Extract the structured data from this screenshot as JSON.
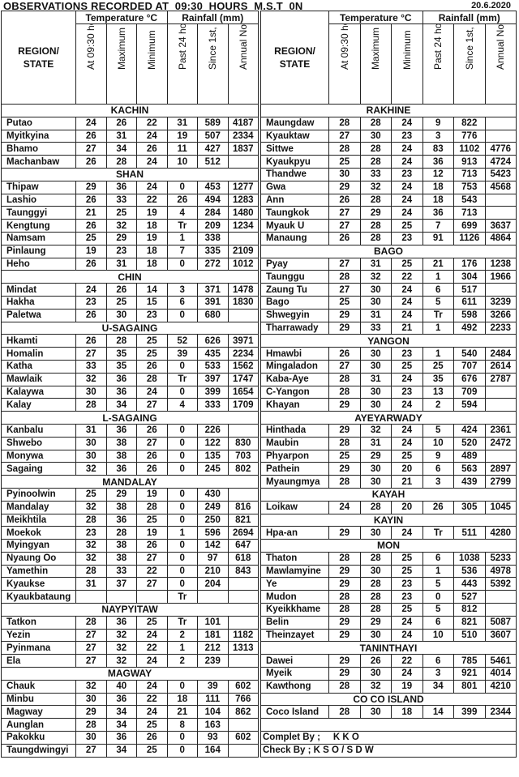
{
  "title": "OBSERVATIONS RECORDED AT  09:30  HOURS  M.S.T  0N",
  "date": "20.6.2020",
  "headers": {
    "region": "REGION/\nSTATE",
    "temperature": "Temperature  °C",
    "rainfall": "Rainfall (mm)",
    "columns": [
      "At 09:30 hours",
      "Maximum",
      "Minimum",
      "Past 24 hours",
      "Since 1st, Jan",
      "Annual Normal"
    ]
  },
  "left": [
    {
      "name": "KACHIN",
      "rows": [
        [
          "Putao",
          "24",
          "26",
          "22",
          "31",
          "589",
          "4187"
        ],
        [
          "Myitkyina",
          "26",
          "31",
          "24",
          "19",
          "507",
          "2334"
        ],
        [
          "Bhamo",
          "27",
          "34",
          "26",
          "11",
          "427",
          "1837"
        ],
        [
          "Machanbaw",
          "26",
          "28",
          "24",
          "10",
          "512",
          ""
        ]
      ]
    },
    {
      "name": "SHAN",
      "rows": [
        [
          "Thipaw",
          "29",
          "36",
          "24",
          "0",
          "453",
          "1277"
        ],
        [
          "Lashio",
          "26",
          "33",
          "22",
          "26",
          "494",
          "1283"
        ],
        [
          "Taunggyi",
          "21",
          "25",
          "19",
          "4",
          "284",
          "1480"
        ],
        [
          "Kengtung",
          "26",
          "32",
          "18",
          "Tr",
          "209",
          "1234"
        ],
        [
          "Namsam",
          "25",
          "29",
          "19",
          "1",
          "338",
          ""
        ],
        [
          "Pinlaung",
          "19",
          "23",
          "18",
          "7",
          "335",
          "2109"
        ],
        [
          "Heho",
          "26",
          "31",
          "18",
          "0",
          "272",
          "1012"
        ]
      ]
    },
    {
      "name": "CHIN",
      "rows": [
        [
          "Mindat",
          "24",
          "26",
          "14",
          "3",
          "371",
          "1478"
        ],
        [
          "Hakha",
          "23",
          "25",
          "15",
          "6",
          "391",
          "1830"
        ],
        [
          "Paletwa",
          "26",
          "30",
          "23",
          "0",
          "680",
          ""
        ]
      ]
    },
    {
      "name": "U-SAGAING",
      "rows": [
        [
          "Hkamti",
          "26",
          "28",
          "25",
          "52",
          "626",
          "3971"
        ],
        [
          "Homalin",
          "27",
          "35",
          "25",
          "39",
          "435",
          "2234"
        ],
        [
          "Katha",
          "33",
          "35",
          "26",
          "0",
          "533",
          "1562"
        ],
        [
          "Mawlaik",
          "32",
          "36",
          "28",
          "Tr",
          "397",
          "1747"
        ],
        [
          "Kalaywa",
          "30",
          "36",
          "24",
          "0",
          "399",
          "1654"
        ],
        [
          "Kalay",
          "28",
          "34",
          "27",
          "4",
          "333",
          "1709"
        ]
      ]
    },
    {
      "name": "L-SAGAING",
      "rows": [
        [
          "Kanbalu",
          "31",
          "36",
          "26",
          "0",
          "226",
          ""
        ],
        [
          "Shwebo",
          "30",
          "38",
          "27",
          "0",
          "122",
          "830"
        ],
        [
          "Monywa",
          "30",
          "38",
          "26",
          "0",
          "135",
          "703"
        ],
        [
          "Sagaing",
          "32",
          "36",
          "26",
          "0",
          "245",
          "802"
        ]
      ]
    },
    {
      "name": "MANDALAY",
      "rows": [
        [
          "Pyinoolwin",
          "25",
          "29",
          "19",
          "0",
          "430",
          ""
        ],
        [
          "Mandalay",
          "32",
          "38",
          "28",
          "0",
          "249",
          "816"
        ],
        [
          "Meikhtila",
          "28",
          "36",
          "25",
          "0",
          "250",
          "821"
        ],
        [
          "Moekok",
          "23",
          "28",
          "19",
          "1",
          "596",
          "2694"
        ],
        [
          "Myingyan",
          "32",
          "38",
          "26",
          "0",
          "142",
          "647"
        ],
        [
          "Nyaung Oo",
          "32",
          "38",
          "27",
          "0",
          "97",
          "618"
        ],
        [
          "Yamethin",
          "28",
          "33",
          "22",
          "0",
          "210",
          "843"
        ],
        [
          "Kyaukse",
          "31",
          "37",
          "27",
          "0",
          "204",
          ""
        ],
        [
          "Kyaukbataung",
          "",
          "",
          "",
          "Tr",
          "",
          ""
        ]
      ]
    },
    {
      "name": "NAYPYITAW",
      "rows": [
        [
          "Tatkon",
          "28",
          "36",
          "25",
          "Tr",
          "101",
          ""
        ],
        [
          "Yezin",
          "27",
          "32",
          "24",
          "2",
          "181",
          "1182"
        ],
        [
          "Pyinmana",
          "27",
          "32",
          "22",
          "1",
          "212",
          "1313"
        ],
        [
          "Ela",
          "27",
          "32",
          "24",
          "2",
          "239",
          ""
        ]
      ]
    },
    {
      "name": "MAGWAY",
      "rows": [
        [
          "Chauk",
          "32",
          "40",
          "24",
          "0",
          "39",
          "602"
        ],
        [
          "Minbu",
          "30",
          "36",
          "22",
          "18",
          "111",
          "766"
        ],
        [
          "Magway",
          "29",
          "34",
          "24",
          "21",
          "104",
          "862"
        ],
        [
          "Aunglan",
          "28",
          "34",
          "25",
          "8",
          "163",
          ""
        ],
        [
          "Pakokku",
          "30",
          "36",
          "26",
          "0",
          "93",
          "602"
        ],
        [
          "Taungdwingyi",
          "27",
          "34",
          "25",
          "0",
          "164",
          ""
        ]
      ]
    }
  ],
  "right": [
    {
      "name": "RAKHINE",
      "rows": [
        [
          "Maungdaw",
          "28",
          "28",
          "24",
          "9",
          "822",
          ""
        ],
        [
          "Kyauktaw",
          "27",
          "30",
          "23",
          "3",
          "776",
          ""
        ],
        [
          "Sittwe",
          "28",
          "28",
          "24",
          "83",
          "1102",
          "4776"
        ],
        [
          "Kyaukpyu",
          "25",
          "28",
          "24",
          "36",
          "913",
          "4724"
        ],
        [
          "Thandwe",
          "30",
          "33",
          "23",
          "12",
          "713",
          "5423"
        ],
        [
          "Gwa",
          "29",
          "32",
          "24",
          "18",
          "753",
          "4568"
        ],
        [
          "Ann",
          "26",
          "28",
          "24",
          "18",
          "543",
          ""
        ],
        [
          "Taungkok",
          "27",
          "29",
          "24",
          "36",
          "713",
          ""
        ],
        [
          "Myauk U",
          "27",
          "28",
          "25",
          "7",
          "699",
          "3637"
        ],
        [
          "Manaung",
          "26",
          "28",
          "23",
          "91",
          "1126",
          "4864"
        ]
      ]
    },
    {
      "name": "BAGO",
      "rows": [
        [
          "Pyay",
          "27",
          "31",
          "25",
          "21",
          "176",
          "1238"
        ],
        [
          "Taunggu",
          "28",
          "32",
          "22",
          "1",
          "304",
          "1966"
        ],
        [
          "Zaung Tu",
          "27",
          "30",
          "24",
          "6",
          "517",
          ""
        ],
        [
          "Bago",
          "25",
          "30",
          "24",
          "5",
          "611",
          "3239"
        ],
        [
          "Shwegyin",
          "29",
          "31",
          "24",
          "Tr",
          "598",
          "3266"
        ],
        [
          "Tharrawady",
          "29",
          "33",
          "21",
          "1",
          "492",
          "2233"
        ]
      ]
    },
    {
      "name": "YANGON",
      "rows": [
        [
          "Hmawbi",
          "26",
          "30",
          "23",
          "1",
          "540",
          "2484"
        ],
        [
          "Mingaladon",
          "27",
          "30",
          "25",
          "25",
          "707",
          "2614"
        ],
        [
          "Kaba-Aye",
          "28",
          "31",
          "24",
          "35",
          "676",
          "2787"
        ],
        [
          "C-Yangon",
          "28",
          "30",
          "23",
          "13",
          "709",
          ""
        ],
        [
          "Khayan",
          "29",
          "30",
          "24",
          "2",
          "594",
          ""
        ]
      ]
    },
    {
      "name": "AYEYARWADY",
      "rows": [
        [
          "Hinthada",
          "29",
          "32",
          "24",
          "5",
          "424",
          "2361"
        ],
        [
          "Maubin",
          "28",
          "31",
          "24",
          "10",
          "520",
          "2472"
        ],
        [
          "Phyarpon",
          "25",
          "29",
          "25",
          "9",
          "489",
          ""
        ],
        [
          "Pathein",
          "29",
          "30",
          "20",
          "6",
          "563",
          "2897"
        ],
        [
          "Myaungmya",
          "28",
          "30",
          "21",
          "3",
          "439",
          "2799"
        ]
      ]
    },
    {
      "name": "KAYAH",
      "rows": [
        [
          "Loikaw",
          "24",
          "28",
          "20",
          "26",
          "305",
          "1045"
        ]
      ]
    },
    {
      "name": "KAYIN",
      "rows": [
        [
          "Hpa-an",
          "29",
          "30",
          "24",
          "Tr",
          "511",
          "4280"
        ]
      ]
    },
    {
      "name": "MON",
      "rows": [
        [
          "Thaton",
          "28",
          "28",
          "25",
          "6",
          "1038",
          "5233"
        ],
        [
          "Mawlamyine",
          "29",
          "30",
          "25",
          "1",
          "536",
          "4978"
        ],
        [
          "Ye",
          "29",
          "28",
          "23",
          "5",
          "443",
          "5392"
        ],
        [
          "Mudon",
          "28",
          "28",
          "23",
          "0",
          "527",
          ""
        ],
        [
          "Kyeikkhame",
          "28",
          "28",
          "25",
          "5",
          "812",
          ""
        ],
        [
          "Belin",
          "29",
          "29",
          "24",
          "6",
          "821",
          "5087"
        ],
        [
          "Theinzayet",
          "29",
          "30",
          "24",
          "10",
          "510",
          "3607"
        ]
      ]
    },
    {
      "name": "TANINTHAYI",
      "rows": [
        [
          "Dawei",
          "29",
          "26",
          "22",
          "6",
          "785",
          "5461"
        ],
        [
          "Myeik",
          "29",
          "30",
          "24",
          "3",
          "921",
          "4014"
        ],
        [
          "Kawthong",
          "28",
          "32",
          "19",
          "34",
          "801",
          "4210"
        ]
      ]
    },
    {
      "name": "CO CO  ISLAND",
      "rows": [
        [
          "Coco  Island",
          "28",
          "30",
          "18",
          "14",
          "399",
          "2344"
        ]
      ]
    }
  ],
  "footer": {
    "compiled_by": "Complet By ;     K K O",
    "checked_by": "Check By ; K S O / S D W"
  }
}
